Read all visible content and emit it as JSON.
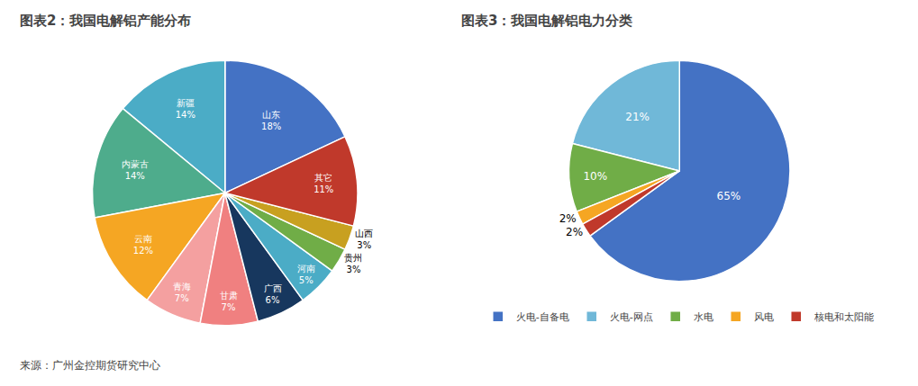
{
  "chart_data": [
    {
      "type": "pie",
      "title": "图表2：我国电解铝产能分布",
      "categories": [
        "山东",
        "新疆",
        "内蒙古",
        "云南",
        "青海",
        "甘肃",
        "广西",
        "河南",
        "贵州",
        "山西",
        "其它"
      ],
      "values": [
        18,
        14,
        14,
        12,
        7,
        7,
        6,
        5,
        3,
        3,
        11
      ],
      "colors": [
        "#4472C4",
        "#4BACC6",
        "#4EAC8C",
        "#F5A623",
        "#F4A0A0",
        "#F08080",
        "#17375E",
        "#4BACC6",
        "#70AD47",
        "#C8A020",
        "#C0392B"
      ],
      "value_labels": [
        "18%",
        "14%",
        "14%",
        "12%",
        "7%",
        "7%",
        "6%",
        "5%",
        "3%",
        "3%",
        "11%"
      ],
      "data_labels": true,
      "legend": false,
      "annotations": [
        "来源：广州金控期货研究中心"
      ]
    },
    {
      "type": "pie",
      "title": "图表3：我国电解铝电力分类",
      "categories": [
        "火电-自备电",
        "火电-网点",
        "水电",
        "风电",
        "核电和太阳能"
      ],
      "values": [
        65,
        21,
        10,
        2,
        2
      ],
      "colors": [
        "#4472C4",
        "#70B8D8",
        "#70AD47",
        "#F5A623",
        "#C0392B"
      ],
      "value_labels": [
        "65%",
        "21%",
        "10%",
        "2%",
        "2%"
      ],
      "data_labels": true,
      "legend": "bottom"
    }
  ]
}
